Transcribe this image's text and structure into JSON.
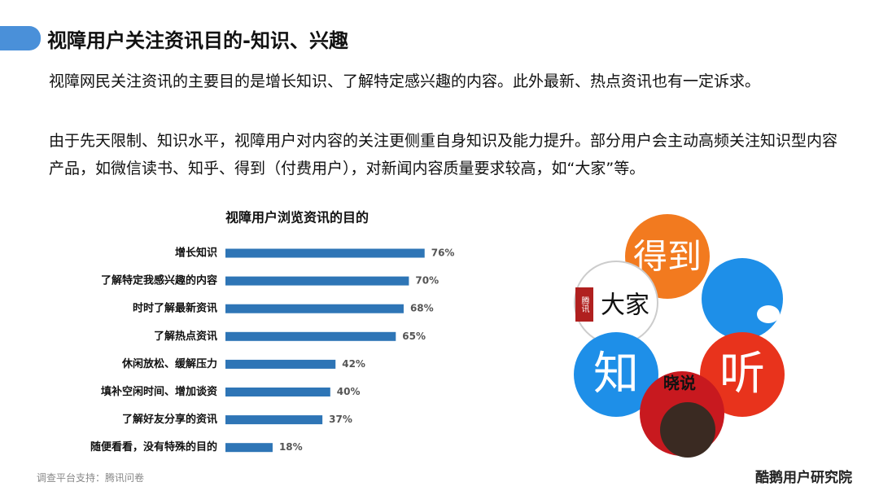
{
  "header": {
    "title": "视障用户关注资讯目的-知识、兴趣"
  },
  "paragraphs": [
    "视障网民关注资讯的主要目的是增长知识、了解特定感兴趣的内容。此外最新、热点资讯也有一定诉求。",
    "由于先天限制、知识水平，视障用户对内容的关注更侧重自身知识及能力提升。部分用户会主动高频关注知识型内容产品，如微信读书、知乎、得到（付费用户），对新闻内容质量要求较高，如“大家”等。"
  ],
  "chart_data": {
    "type": "bar",
    "orientation": "horizontal",
    "title": "视障用户浏览资讯的目的",
    "categories": [
      "增长知识",
      "了解特定我感兴趣的内容",
      "时时了解最新资讯",
      "了解热点资讯",
      "休闲放松、缓解压力",
      "填补空闲时间、增加谈资",
      "了解好友分享的资讯",
      "随便看看，没有特殊的目的"
    ],
    "values": [
      76,
      70,
      68,
      65,
      42,
      40,
      37,
      18
    ],
    "value_labels": [
      "76%",
      "70%",
      "68%",
      "65%",
      "42%",
      "40%",
      "37%",
      "18%"
    ],
    "color": "#2e75b6"
  },
  "logos": [
    "得到",
    "大家",
    "腾讯",
    "知",
    "听",
    "晓说"
  ],
  "footer": {
    "source": "调查平台支持：腾讯问卷",
    "brand": "酷鹅用户研究院"
  }
}
